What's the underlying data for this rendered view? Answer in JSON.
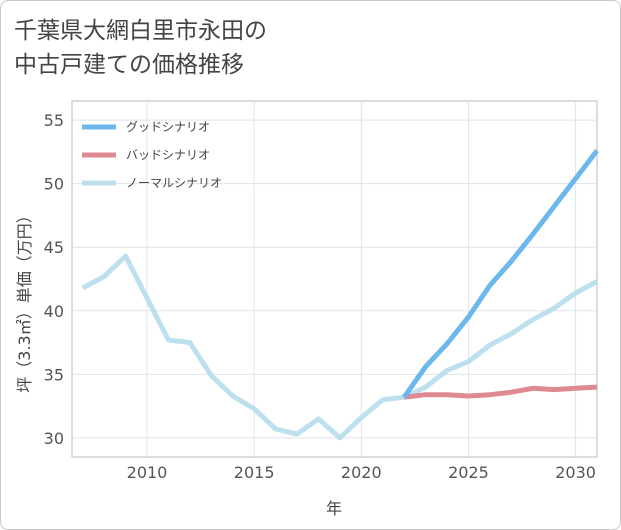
{
  "chart_data": {
    "type": "line",
    "title_line1": "千葉県大網白里市永田の",
    "title_line2": "中古戸建ての価格推移",
    "xlabel": "年",
    "ylabel": "坪（3.3㎡）単価（万円）",
    "xlim": [
      2006.5,
      2031
    ],
    "ylim": [
      28.5,
      56.5
    ],
    "xticks": [
      2010,
      2015,
      2020,
      2025,
      2030
    ],
    "yticks": [
      30,
      35,
      40,
      45,
      50,
      55
    ],
    "series": [
      {
        "name": "グッドシナリオ",
        "color": "#6cb8ec",
        "x": [
          2022,
          2023,
          2024,
          2025,
          2026,
          2027,
          2028,
          2029,
          2030,
          2031
        ],
        "y": [
          33.2,
          35.6,
          37.4,
          39.5,
          42.0,
          43.9,
          46.0,
          48.2,
          50.4,
          52.6
        ]
      },
      {
        "name": "バッドシナリオ",
        "color": "#df8a92",
        "x": [
          2022,
          2023,
          2024,
          2025,
          2026,
          2027,
          2028,
          2029,
          2030,
          2031
        ],
        "y": [
          33.2,
          33.4,
          33.4,
          33.3,
          33.4,
          33.6,
          33.9,
          33.8,
          33.9,
          34.0
        ]
      },
      {
        "name": "ノーマルシナリオ",
        "color": "#bde0ee",
        "x": [
          2007,
          2008,
          2009,
          2010,
          2011,
          2012,
          2013,
          2014,
          2015,
          2016,
          2017,
          2018,
          2019,
          2020,
          2021,
          2022,
          2023,
          2024,
          2025,
          2026,
          2027,
          2028,
          2029,
          2030,
          2031
        ],
        "y": [
          41.8,
          42.7,
          44.3,
          41.0,
          37.7,
          37.5,
          34.9,
          33.3,
          32.3,
          30.7,
          30.3,
          31.5,
          30.0,
          31.6,
          33.0,
          33.2,
          34.0,
          35.3,
          36.0,
          37.3,
          38.2,
          39.3,
          40.2,
          41.4,
          42.3
        ]
      }
    ]
  }
}
